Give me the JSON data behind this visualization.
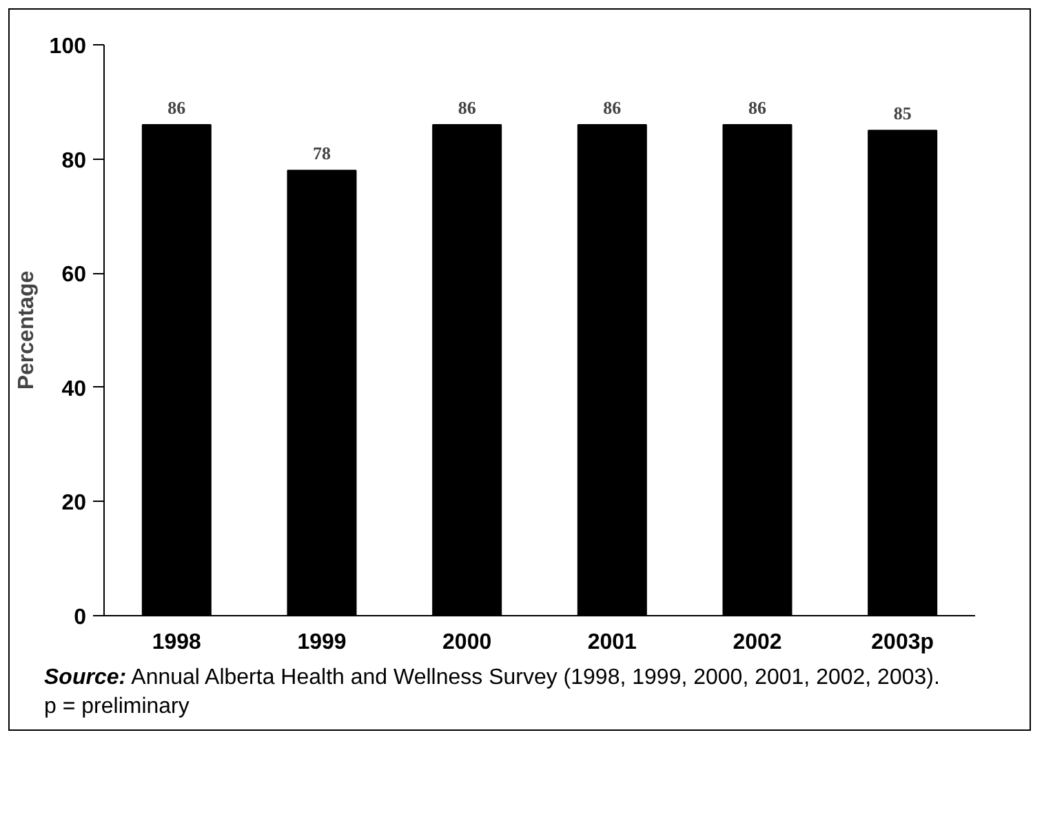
{
  "chart_data": {
    "type": "bar",
    "ylabel": "Percentage",
    "categories": [
      "1998",
      "1999",
      "2000",
      "2001",
      "2002",
      "2003p"
    ],
    "values": [
      86,
      78,
      86,
      86,
      86,
      85
    ],
    "color": "#000000",
    "ylim": [
      0,
      100
    ],
    "yticks": [
      0,
      20,
      40,
      60,
      80,
      100
    ],
    "grid": false,
    "data_labels": true,
    "annotations": [
      "Source:  Annual Alberta Health and Wellness Survey (1998, 1999, 2000, 2001, 2002, 2003).",
      "p = preliminary"
    ]
  }
}
